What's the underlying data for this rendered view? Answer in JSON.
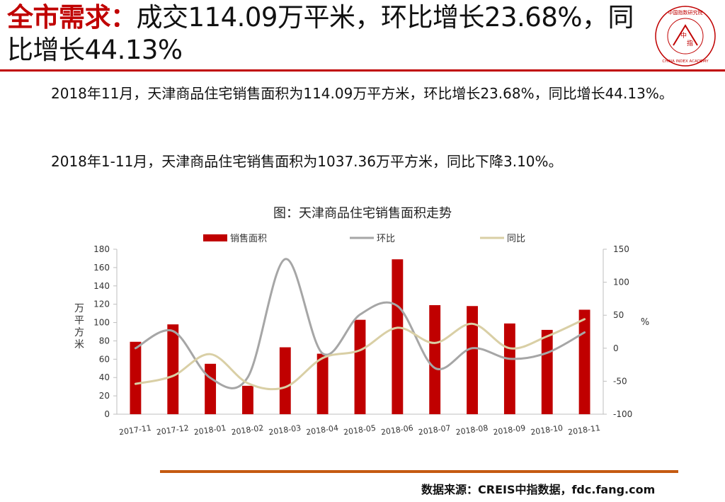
{
  "header": {
    "title_hl": "全市需求：",
    "title_rest": "成交114.09万平米，环比增长23.68%，同比增长44.13%",
    "logo_text_top": "中国指数研究院",
    "logo_text_bottom": "CHINA INDEX ACADEMY",
    "logo_mark_1": "中",
    "logo_mark_2": "指"
  },
  "body": {
    "p1": "2018年11月，天津商品住宅销售面积为114.09万平方米，环比增长23.68%，同比增长44.13%。",
    "p2": "2018年1-11月，天津商品住宅销售面积为1037.36万平方米，同比下降3.10%。"
  },
  "chart_data": {
    "type": "bar",
    "title": "图：天津商品住宅销售面积走势",
    "categories": [
      "2017-11",
      "2017-12",
      "2018-01",
      "2018-02",
      "2018-03",
      "2018-04",
      "2018-05",
      "2018-06",
      "2018-07",
      "2018-08",
      "2018-09",
      "2018-10",
      "2018-11"
    ],
    "series": [
      {
        "name": "销售面积",
        "kind": "bar",
        "axis": "left",
        "color": "#c00000",
        "values": [
          79,
          98,
          55,
          31,
          73,
          66,
          103,
          169,
          119,
          118,
          99,
          92,
          114
        ]
      },
      {
        "name": "环比",
        "kind": "line",
        "axis": "right",
        "color": "#a6a6a6",
        "values": [
          0,
          26,
          -45,
          -44,
          135,
          -8,
          51,
          64,
          -30,
          0,
          -16,
          -7,
          24
        ]
      },
      {
        "name": "同比",
        "kind": "line",
        "axis": "right",
        "color": "#d9cfa5",
        "values": [
          -54,
          -42,
          -9,
          -53,
          -59,
          -15,
          -3,
          31,
          8,
          37,
          0,
          18,
          44
        ]
      }
    ],
    "ylabel_left": "万平方米",
    "ylabel_right": "%",
    "ylim_left": [
      0,
      180
    ],
    "yticks_left": [
      0,
      20,
      40,
      60,
      80,
      100,
      120,
      140,
      160,
      180
    ],
    "ylim_right": [
      -100,
      150
    ],
    "yticks_right": [
      -100,
      -50,
      0,
      50,
      100,
      150
    ],
    "legend": "top",
    "grid": false
  },
  "footer": {
    "source": "数据来源：CREIS中指数据，fdc.fang.com"
  }
}
